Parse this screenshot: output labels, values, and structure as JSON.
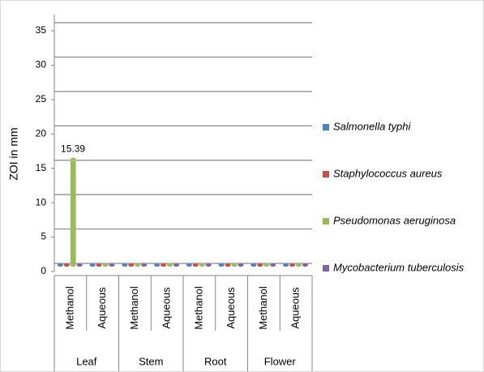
{
  "chart_data": {
    "type": "bar",
    "y_label": "ZOI in mm",
    "groups": [
      "Leaf",
      "Stem",
      "Root",
      "Flower"
    ],
    "categories": [
      "Methanol",
      "Aqueous",
      "Methanol",
      "Aqueous",
      "Methanol",
      "Aqueous",
      "Methanol",
      "Aqueous"
    ],
    "series": [
      {
        "name": "Salmonella typhi",
        "color": "#4f81bd",
        "values": [
          0,
          0,
          0,
          0,
          0,
          0,
          0,
          0
        ]
      },
      {
        "name": "Staphylococcus aureus",
        "color": "#c0504d",
        "values": [
          0,
          0,
          0,
          0,
          0,
          0,
          0,
          0
        ]
      },
      {
        "name": "Pseudomonas aeruginosa",
        "color": "#9bbb59",
        "values": [
          15.39,
          0,
          0,
          0,
          0,
          0,
          0,
          0
        ]
      },
      {
        "name": "Mycobacterium tuberculosis",
        "color": "#8064a2",
        "values": [
          0,
          0,
          0,
          0,
          0,
          0,
          0,
          0
        ]
      }
    ],
    "ylim": [
      0,
      35
    ],
    "yticks": [
      0,
      5,
      10,
      15,
      20,
      25,
      30,
      35
    ],
    "grid": true
  }
}
